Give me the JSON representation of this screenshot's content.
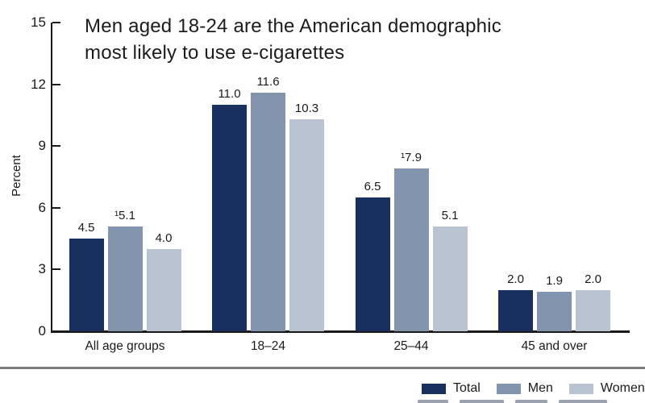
{
  "title": {
    "line1": "Men aged 18-24 are the American demographic",
    "line2": "most likely to use e-cigarettes"
  },
  "chart_data": {
    "type": "bar",
    "title": "Men aged 18-24 are the American demographic most likely to use e-cigarettes",
    "xlabel": "",
    "ylabel": "Percent",
    "ylim": [
      0,
      15
    ],
    "yticks": [
      0,
      3,
      6,
      9,
      12,
      15
    ],
    "grid": false,
    "legend_position": "bottom-right",
    "categories": [
      "All age groups",
      "18–24",
      "25–44",
      "45 and over"
    ],
    "series": [
      {
        "name": "Total",
        "color": "#17305f",
        "values": [
          4.5,
          11.0,
          6.5,
          2.0
        ],
        "labels": [
          "4.5",
          "11.0",
          "6.5",
          "2.0"
        ]
      },
      {
        "name": "Men",
        "color": "#8294ae",
        "values": [
          5.1,
          11.6,
          7.9,
          1.9
        ],
        "labels": [
          "¹5.1",
          "11.6",
          "¹7.9",
          "1.9"
        ]
      },
      {
        "name": "Women",
        "color": "#b9c3d2",
        "values": [
          4.0,
          10.3,
          5.1,
          2.0
        ],
        "labels": [
          "4.0",
          "10.3",
          "5.1",
          "2.0"
        ]
      }
    ],
    "footnote_marker": "¹"
  },
  "colors": {
    "axis": "#1a1a1a",
    "separator": "#7d7d7d",
    "total": "#17305f",
    "men": "#8294ae",
    "women": "#b9c3d2"
  }
}
